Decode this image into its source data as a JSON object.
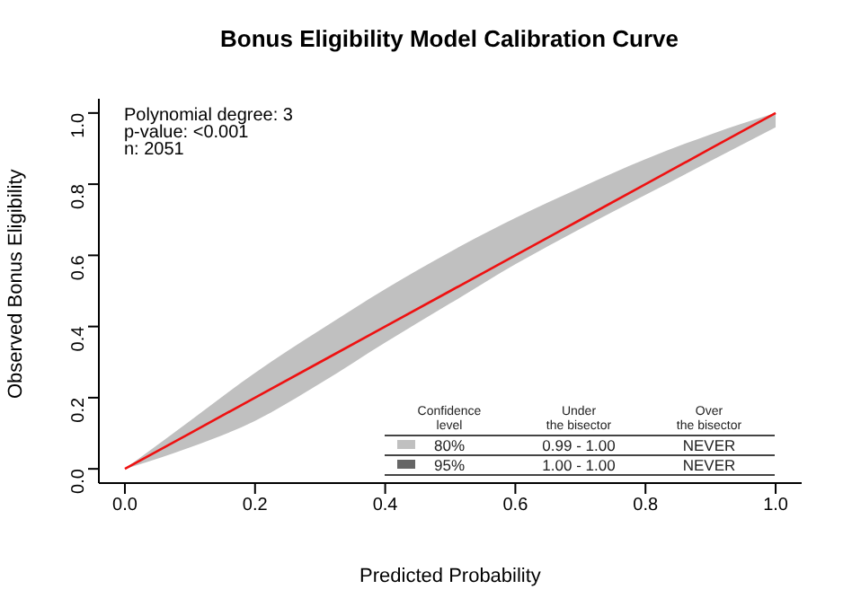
{
  "chart_data": {
    "type": "line",
    "title": "Bonus Eligibility Model Calibration Curve",
    "xlabel": "Predicted Probability",
    "ylabel": "Observed Bonus Eligibility",
    "x": [
      0,
      0.1,
      0.2,
      0.3,
      0.4,
      0.5,
      0.6,
      0.7,
      0.8,
      0.9,
      1.0
    ],
    "series": [
      {
        "color": "#ee1111",
        "values": [
          0,
          0.1,
          0.2,
          0.3,
          0.4,
          0.5,
          0.6,
          0.7,
          0.8,
          0.9,
          1.0
        ],
        "lower": [
          0,
          0.06,
          0.135,
          0.24,
          0.355,
          0.465,
          0.575,
          0.675,
          0.77,
          0.865,
          0.96
        ],
        "upper": [
          0,
          0.135,
          0.27,
          0.39,
          0.505,
          0.61,
          0.705,
          0.79,
          0.87,
          0.94,
          1.0
        ]
      }
    ],
    "xlim": [
      -0.04,
      1.04
    ],
    "ylim": [
      -0.04,
      1.04
    ],
    "xticks": [
      {
        "value": 0,
        "label": "0.0"
      },
      {
        "value": 0.2,
        "label": "0.2"
      },
      {
        "value": 0.4,
        "label": "0.4"
      },
      {
        "value": 0.6,
        "label": "0.6"
      },
      {
        "value": 0.8,
        "label": "0.8"
      },
      {
        "value": 1,
        "label": "1.0"
      }
    ],
    "yticks": [
      {
        "value": 0,
        "label": "0.0"
      },
      {
        "value": 0.2,
        "label": "0.2"
      },
      {
        "value": 0.4,
        "label": "0.4"
      },
      {
        "value": 0.6,
        "label": "0.6"
      },
      {
        "value": 0.8,
        "label": "0.8"
      },
      {
        "value": 1,
        "label": "1.0"
      }
    ],
    "legend_title": "Confidence level",
    "marker": "none",
    "line_style": "solid",
    "annotations": [
      "Polynomial degree: 3",
      "p-value: <0.001",
      "n: 2051",
      "Under the bisector",
      "Over the bisector",
      "80%",
      "0.99 - 1.00",
      "NEVER",
      "95%",
      "1.00 - 1.00",
      "NEVER"
    ]
  }
}
